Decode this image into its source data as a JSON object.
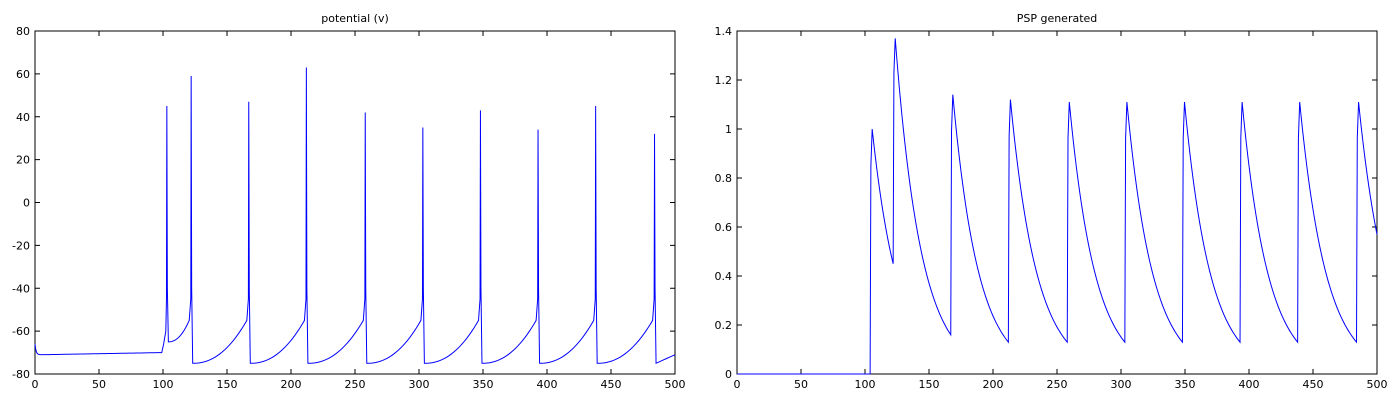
{
  "chart_data": [
    {
      "type": "line",
      "title": "potential (v)",
      "xlabel": "",
      "ylabel": "",
      "xlim": [
        0,
        500
      ],
      "ylim": [
        -80,
        80
      ],
      "xticks": [
        0,
        50,
        100,
        150,
        200,
        250,
        300,
        350,
        400,
        450,
        500
      ],
      "yticks": [
        -80,
        -60,
        -40,
        -20,
        0,
        20,
        40,
        60,
        80
      ],
      "grid": false,
      "color": "#0000ff",
      "baseline": {
        "x_start": 0,
        "x_end": 100,
        "y_start": -70,
        "y_end": -70,
        "initial": -66,
        "dip": -71
      },
      "series": [
        {
          "spikes": [
            {
              "t": 103,
              "peak": 45
            },
            {
              "t": 122,
              "peak": 59
            },
            {
              "t": 167,
              "peak": 47
            },
            {
              "t": 212,
              "peak": 63
            },
            {
              "t": 258,
              "peak": 42
            },
            {
              "t": 303,
              "peak": 35
            },
            {
              "t": 348,
              "peak": 43
            },
            {
              "t": 393,
              "peak": 34
            },
            {
              "t": 438,
              "peak": 45
            },
            {
              "t": 484,
              "peak": 32
            }
          ],
          "trough": -75,
          "end_value": -71
        }
      ]
    },
    {
      "type": "line",
      "title": "PSP generated",
      "xlabel": "",
      "ylabel": "",
      "xlim": [
        0,
        500
      ],
      "ylim": [
        0,
        1.4
      ],
      "xticks": [
        0,
        50,
        100,
        150,
        200,
        250,
        300,
        350,
        400,
        450,
        500
      ],
      "yticks": [
        0,
        0.2,
        0.4,
        0.6,
        0.8,
        1,
        1.2,
        1.4
      ],
      "ytick_labels": [
        "0",
        "0.2",
        "0.4",
        "0.6",
        "0.8",
        "1",
        "1.2",
        "1.4"
      ],
      "grid": false,
      "color": "#0000ff",
      "series": [
        {
          "onset": 104,
          "pulses": [
            {
              "t": 104,
              "start": 0,
              "peak": 1.0,
              "end_t": 122,
              "end_value": 0.45
            },
            {
              "t": 122,
              "start": 0.45,
              "peak": 1.37,
              "end_t": 167,
              "end_value": 0.16
            },
            {
              "t": 167,
              "start": 0.16,
              "peak": 1.14,
              "end_t": 212,
              "end_value": 0.13
            },
            {
              "t": 212,
              "start": 0.13,
              "peak": 1.12,
              "end_t": 258,
              "end_value": 0.13
            },
            {
              "t": 258,
              "start": 0.13,
              "peak": 1.11,
              "end_t": 303,
              "end_value": 0.13
            },
            {
              "t": 303,
              "start": 0.13,
              "peak": 1.11,
              "end_t": 348,
              "end_value": 0.13
            },
            {
              "t": 348,
              "start": 0.13,
              "peak": 1.11,
              "end_t": 393,
              "end_value": 0.13
            },
            {
              "t": 393,
              "start": 0.13,
              "peak": 1.11,
              "end_t": 438,
              "end_value": 0.13
            },
            {
              "t": 438,
              "start": 0.13,
              "peak": 1.11,
              "end_t": 484,
              "end_value": 0.13
            },
            {
              "t": 484,
              "start": 0.13,
              "peak": 1.11,
              "end_t": 500,
              "end_value": 0.57
            }
          ]
        }
      ]
    }
  ]
}
